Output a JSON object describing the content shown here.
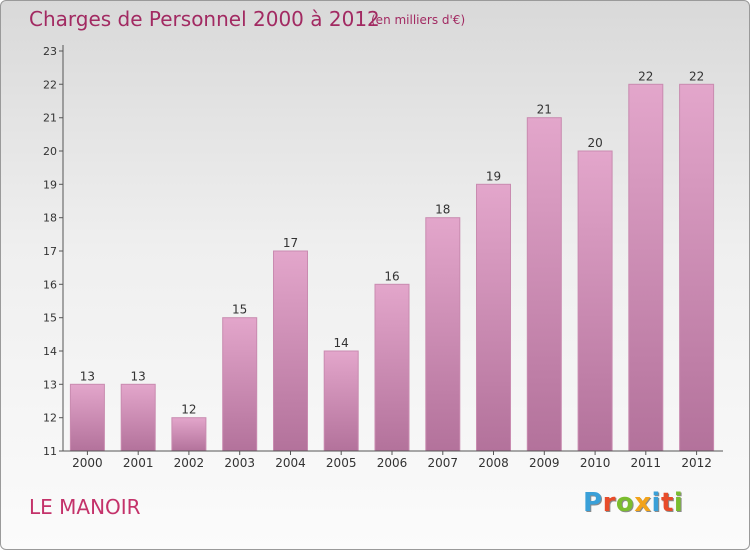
{
  "header": {
    "title": "Charges de Personnel 2000 à 2012",
    "subtitle": "(en milliers d'€)"
  },
  "footer": {
    "commune": "LE MANOIR",
    "logo_text": "Proxiti"
  },
  "colors": {
    "bar_top": "#e3a6cb",
    "bar_bottom": "#b3729b",
    "bar_edge": "#c98bb0",
    "accent": "#c4326a"
  },
  "chart_data": {
    "type": "bar",
    "title": "Charges de Personnel 2000 à 2012",
    "subtitle": "(en milliers d'€)",
    "categories": [
      "2000",
      "2001",
      "2002",
      "2003",
      "2004",
      "2005",
      "2006",
      "2007",
      "2008",
      "2009",
      "2010",
      "2011",
      "2012"
    ],
    "values": [
      13,
      13,
      12,
      15,
      17,
      14,
      16,
      18,
      19,
      21,
      20,
      22,
      22
    ],
    "data_labels": [
      "13",
      "13",
      "12",
      "15",
      "17",
      "14",
      "16",
      "18",
      "19",
      "21",
      "20",
      "22",
      "22"
    ],
    "ylim": [
      11,
      23
    ],
    "yticks": [
      11,
      12,
      13,
      14,
      15,
      16,
      17,
      18,
      19,
      20,
      21,
      22,
      23
    ],
    "xlabel": "",
    "ylabel": "",
    "grid": false,
    "legend": "none"
  }
}
